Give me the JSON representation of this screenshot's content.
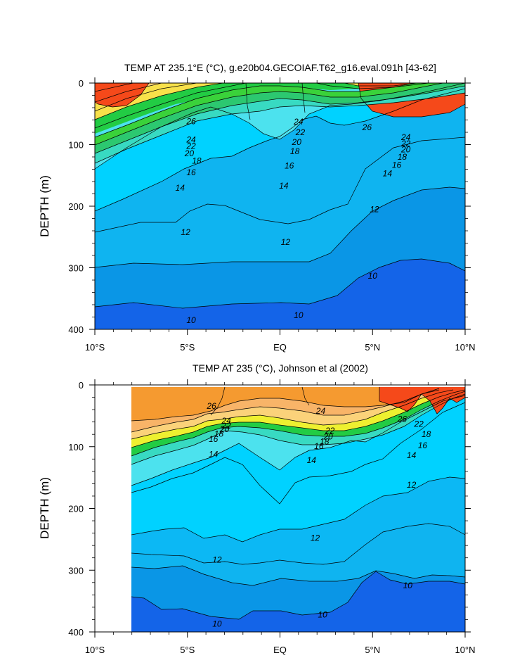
{
  "chart_data": [
    {
      "type": "contour",
      "title": "TEMP AT 235.1°E (°C), g.e20b04.GECOIAF.T62_g16.eval.091h [43-62]",
      "ylabel": "DEPTH (m)",
      "xlabel": "",
      "xlim": [
        -10,
        10
      ],
      "ylim": [
        400,
        0
      ],
      "y_ticks": [
        "0",
        "100",
        "200",
        "300",
        "400"
      ],
      "x_ticks": [
        "10°S",
        "5°S",
        "EQ",
        "5°N",
        "10°N"
      ],
      "contour_labels": [
        {
          "text": "26",
          "x": -4.8,
          "y": 62
        },
        {
          "text": "24",
          "x": -4.8,
          "y": 92
        },
        {
          "text": "22",
          "x": -4.8,
          "y": 102
        },
        {
          "text": "20",
          "x": -4.9,
          "y": 114
        },
        {
          "text": "18",
          "x": -4.5,
          "y": 126
        },
        {
          "text": "16",
          "x": -4.8,
          "y": 145
        },
        {
          "text": "14",
          "x": -5.4,
          "y": 170
        },
        {
          "text": "24",
          "x": 1.0,
          "y": 63
        },
        {
          "text": "22",
          "x": 1.1,
          "y": 80
        },
        {
          "text": "20",
          "x": 0.9,
          "y": 96
        },
        {
          "text": "18",
          "x": 0.8,
          "y": 111
        },
        {
          "text": "16",
          "x": 0.5,
          "y": 134
        },
        {
          "text": "14",
          "x": 0.2,
          "y": 167
        },
        {
          "text": "26",
          "x": 4.7,
          "y": 72
        },
        {
          "text": "24",
          "x": 6.8,
          "y": 88
        },
        {
          "text": "22",
          "x": 6.8,
          "y": 98
        },
        {
          "text": "20",
          "x": 6.8,
          "y": 108
        },
        {
          "text": "18",
          "x": 6.6,
          "y": 120
        },
        {
          "text": "16",
          "x": 6.3,
          "y": 133
        },
        {
          "text": "14",
          "x": 5.8,
          "y": 147
        },
        {
          "text": "12",
          "x": 5.1,
          "y": 205
        },
        {
          "text": "12",
          "x": -5.1,
          "y": 242
        },
        {
          "text": "12",
          "x": 0.3,
          "y": 258
        },
        {
          "text": "10",
          "x": 5.0,
          "y": 313
        },
        {
          "text": "10",
          "x": -4.8,
          "y": 385
        },
        {
          "text": "10",
          "x": 1.0,
          "y": 377
        }
      ]
    },
    {
      "type": "contour",
      "title": "TEMP AT 235 (°C), Johnson et al (2002)",
      "ylabel": "DEPTH (m)",
      "xlabel": "",
      "xlim": [
        -10,
        10
      ],
      "ylim": [
        400,
        0
      ],
      "data_xlim": [
        -8,
        10
      ],
      "y_ticks": [
        "0",
        "100",
        "200",
        "300",
        "400"
      ],
      "x_ticks": [
        "10°S",
        "5°S",
        "EQ",
        "5°N",
        "10°N"
      ],
      "contour_labels": [
        {
          "text": "26",
          "x": -3.7,
          "y": 34
        },
        {
          "text": "24",
          "x": -2.9,
          "y": 58
        },
        {
          "text": "22",
          "x": -2.9,
          "y": 66
        },
        {
          "text": "20",
          "x": -3.0,
          "y": 72
        },
        {
          "text": "18",
          "x": -3.3,
          "y": 79
        },
        {
          "text": "16",
          "x": -3.6,
          "y": 88
        },
        {
          "text": "14",
          "x": -3.6,
          "y": 112
        },
        {
          "text": "24",
          "x": 2.2,
          "y": 42
        },
        {
          "text": "22",
          "x": 2.7,
          "y": 74
        },
        {
          "text": "20",
          "x": 2.6,
          "y": 84
        },
        {
          "text": "18",
          "x": 2.4,
          "y": 92
        },
        {
          "text": "16",
          "x": 2.1,
          "y": 99
        },
        {
          "text": "14",
          "x": 1.7,
          "y": 122
        },
        {
          "text": "26",
          "x": 6.6,
          "y": 55
        },
        {
          "text": "22",
          "x": 7.5,
          "y": 63
        },
        {
          "text": "18",
          "x": 7.9,
          "y": 80
        },
        {
          "text": "16",
          "x": 7.7,
          "y": 98
        },
        {
          "text": "14",
          "x": 7.1,
          "y": 114
        },
        {
          "text": "12",
          "x": 7.1,
          "y": 162
        },
        {
          "text": "12",
          "x": 1.9,
          "y": 248
        },
        {
          "text": "12",
          "x": -3.4,
          "y": 283
        },
        {
          "text": "10",
          "x": 6.9,
          "y": 325
        },
        {
          "text": "10",
          "x": -3.4,
          "y": 387
        },
        {
          "text": "10",
          "x": 2.3,
          "y": 372
        }
      ]
    }
  ]
}
